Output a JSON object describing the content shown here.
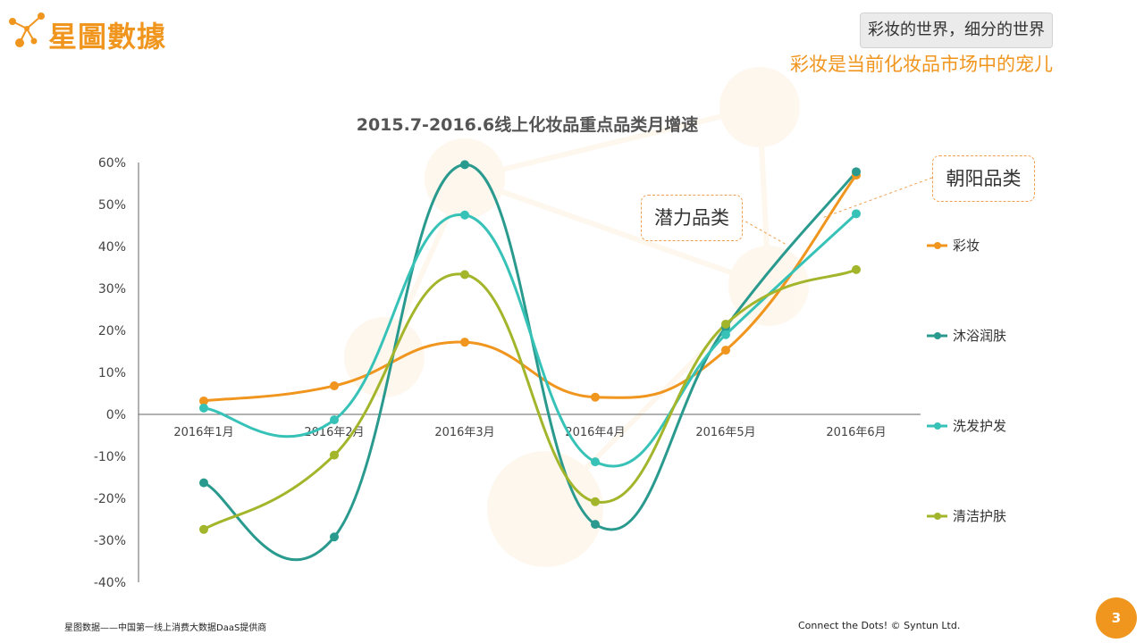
{
  "header": {
    "logo_text": "星圖數據",
    "tagline": "彩妆的世界，细分的世界",
    "subtitle": "彩妆是当前化妆品市场中的宠儿"
  },
  "footer": {
    "left": "星图数据——中国第一线上消费大数据DaaS提供商",
    "right": "Connect the Dots!  © Syntun Ltd.",
    "page_number": "3"
  },
  "callouts": {
    "potential": "潜力品类",
    "rising": "朝阳品类"
  },
  "colors": {
    "brand": "#f0951e",
    "axis": "#666666",
    "text": "#444444"
  },
  "chart_data": {
    "type": "line",
    "title": "2015.7-2016.6线上化妆品重点品类月增速",
    "xlabel": "",
    "ylabel": "",
    "categories": [
      "2016年1月",
      "2016年2月",
      "2016年3月",
      "2016年4月",
      "2016年5月",
      "2016年6月"
    ],
    "ylim": [
      -40,
      60
    ],
    "yticks": [
      60,
      50,
      40,
      30,
      20,
      10,
      0,
      -10,
      -20,
      -30,
      -40
    ],
    "ytick_labels": [
      "60%",
      "50%",
      "40%",
      "30%",
      "20%",
      "10%",
      "0%",
      "-10%",
      "-20%",
      "-30%",
      "-40%"
    ],
    "grid": false,
    "legend_position": "right",
    "smooth": true,
    "series": [
      {
        "name": "彩妆",
        "color": "#f0951e",
        "values": [
          3.2,
          6.8,
          17.2,
          4.1,
          15.3,
          57
        ]
      },
      {
        "name": "沐浴润肤",
        "color": "#2a9a8e",
        "values": [
          -16.3,
          -29.2,
          59.5,
          -26.2,
          20.8,
          57.8
        ]
      },
      {
        "name": "洗发护发",
        "color": "#37c2b8",
        "values": [
          1.5,
          -1.3,
          47.5,
          -11.3,
          19.0,
          47.8
        ]
      },
      {
        "name": "清洁护肤",
        "color": "#a3b52a",
        "values": [
          -27.4,
          -9.7,
          33.3,
          -20.8,
          21.5,
          34.5
        ]
      }
    ]
  }
}
